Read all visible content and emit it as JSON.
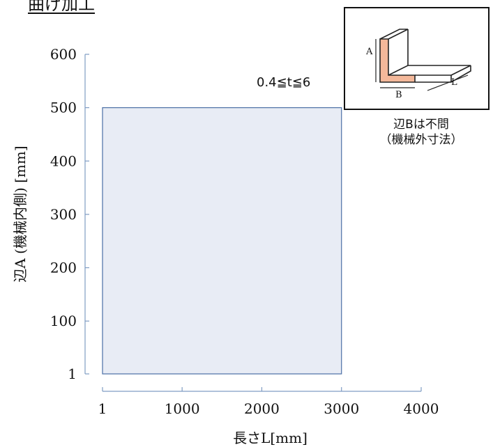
{
  "title": "曲げ加工",
  "range_note": "0.4≦t≦6",
  "inset": {
    "labels": {
      "a": "A",
      "b": "B",
      "l": "L"
    },
    "colors": {
      "section_fill": "#f4b89a",
      "line": "#222222"
    },
    "note_line1": "辺Bは不問",
    "note_line2": "（機械外寸法）"
  },
  "chart_data": {
    "type": "area",
    "title": "",
    "xlabel": "長さL[mm]",
    "ylabel": "辺A (機械内側) [mm]",
    "xlim": [
      1,
      4000
    ],
    "ylim": [
      1,
      600
    ],
    "x_ticks": [
      {
        "value": 1,
        "label": "1"
      },
      {
        "value": 1000,
        "label": "1000"
      },
      {
        "value": 2000,
        "label": "2000"
      },
      {
        "value": 3000,
        "label": "3000"
      },
      {
        "value": 4000,
        "label": "4000"
      }
    ],
    "y_ticks": [
      {
        "value": 1,
        "label": "1"
      },
      {
        "value": 100,
        "label": "100"
      },
      {
        "value": 200,
        "label": "200"
      },
      {
        "value": 300,
        "label": "300"
      },
      {
        "value": 400,
        "label": "400"
      },
      {
        "value": 500,
        "label": "500"
      },
      {
        "value": 600,
        "label": "600"
      }
    ],
    "region": {
      "x": [
        1,
        3000
      ],
      "y": [
        1,
        500
      ]
    },
    "grid": false,
    "colors": {
      "region_fill": "#e8ecf5",
      "region_stroke": "#4a6fa5",
      "axis": "#7f9cc3"
    }
  }
}
